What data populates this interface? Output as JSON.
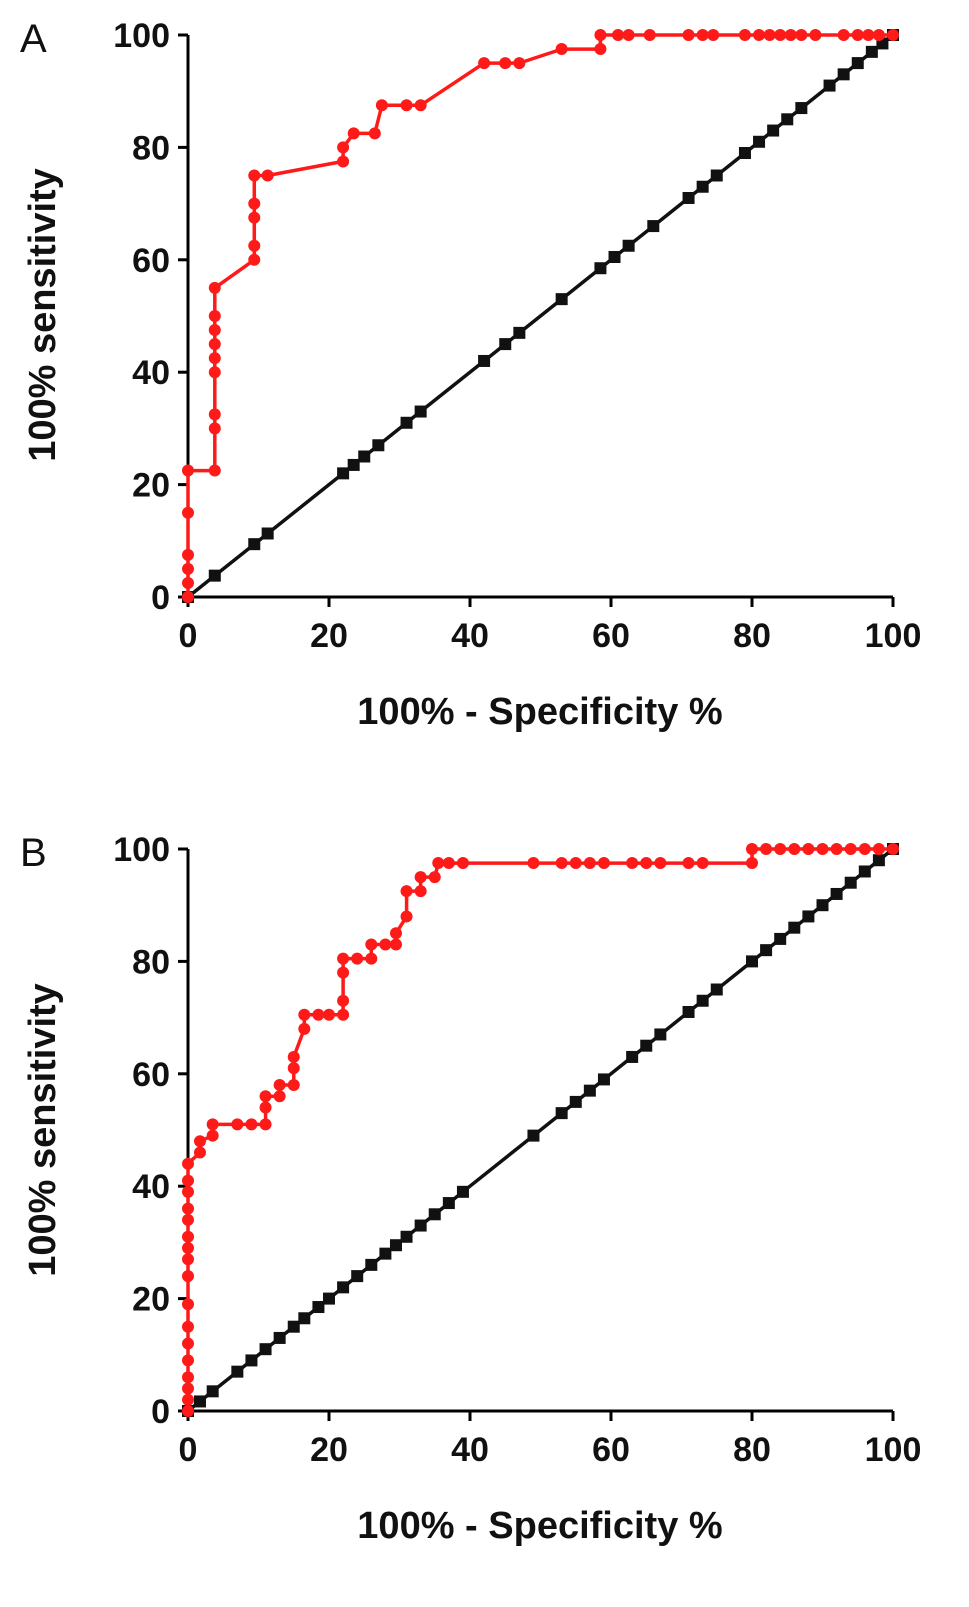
{
  "chart_data": [
    {
      "type": "line",
      "panel_label": "A",
      "xlabel": "100% - Specificity %",
      "ylabel": "100% sensitivity",
      "xlim": [
        0,
        100
      ],
      "ylim": [
        0,
        100
      ],
      "xticks": [
        "0",
        "20",
        "40",
        "60",
        "80",
        "100"
      ],
      "yticks": [
        "0",
        "20",
        "40",
        "60",
        "80",
        "100"
      ],
      "series": [
        {
          "color": "#ff1a1a",
          "marker": "circle",
          "points": [
            [
              0,
              0
            ],
            [
              0,
              2.5
            ],
            [
              0,
              5
            ],
            [
              0,
              7.5
            ],
            [
              0,
              15
            ],
            [
              0,
              22.5
            ],
            [
              3.8,
              22.5
            ],
            [
              3.8,
              30
            ],
            [
              3.8,
              32.5
            ],
            [
              3.8,
              40
            ],
            [
              3.8,
              42.5
            ],
            [
              3.8,
              45
            ],
            [
              3.8,
              47.5
            ],
            [
              3.8,
              50
            ],
            [
              3.8,
              55
            ],
            [
              9.4,
              60
            ],
            [
              9.4,
              62.5
            ],
            [
              9.4,
              67.5
            ],
            [
              9.4,
              70
            ],
            [
              9.4,
              75
            ],
            [
              11.3,
              75
            ],
            [
              22,
              77.5
            ],
            [
              22,
              80
            ],
            [
              23.5,
              82.5
            ],
            [
              26.5,
              82.5
            ],
            [
              27.5,
              87.5
            ],
            [
              31,
              87.5
            ],
            [
              33,
              87.5
            ],
            [
              42,
              95
            ],
            [
              45,
              95
            ],
            [
              47,
              95
            ],
            [
              53,
              97.5
            ],
            [
              58.5,
              97.5
            ],
            [
              58.5,
              100
            ],
            [
              61,
              100
            ],
            [
              62.5,
              100
            ],
            [
              65.5,
              100
            ],
            [
              71,
              100
            ],
            [
              73,
              100
            ],
            [
              74.5,
              100
            ],
            [
              79,
              100
            ],
            [
              81,
              100
            ],
            [
              82.5,
              100
            ],
            [
              84,
              100
            ],
            [
              85.5,
              100
            ],
            [
              87,
              100
            ],
            [
              89,
              100
            ],
            [
              93,
              100
            ],
            [
              95,
              100
            ],
            [
              96.5,
              100
            ],
            [
              98,
              100
            ],
            [
              100,
              100
            ]
          ]
        },
        {
          "color": "#111111",
          "marker": "square",
          "points": [
            [
              0,
              0
            ],
            [
              3.8,
              3.8
            ],
            [
              9.4,
              9.4
            ],
            [
              11.3,
              11.3
            ],
            [
              22,
              22
            ],
            [
              23.5,
              23.5
            ],
            [
              25,
              25
            ],
            [
              27,
              27
            ],
            [
              31,
              31
            ],
            [
              33,
              33
            ],
            [
              42,
              42
            ],
            [
              45,
              45
            ],
            [
              47,
              47
            ],
            [
              53,
              53
            ],
            [
              58.5,
              58.5
            ],
            [
              60.5,
              60.5
            ],
            [
              62.5,
              62.5
            ],
            [
              66,
              66
            ],
            [
              71,
              71
            ],
            [
              73,
              73
            ],
            [
              75,
              75
            ],
            [
              79,
              79
            ],
            [
              81,
              81
            ],
            [
              83,
              83
            ],
            [
              85,
              85
            ],
            [
              87,
              87
            ],
            [
              91,
              91
            ],
            [
              93,
              93
            ],
            [
              95,
              95
            ],
            [
              97,
              97
            ],
            [
              98.5,
              98.5
            ],
            [
              100,
              100
            ]
          ]
        }
      ]
    },
    {
      "type": "line",
      "panel_label": "B",
      "xlabel": "100% - Specificity %",
      "ylabel": "100% sensitivity",
      "xlim": [
        0,
        100
      ],
      "ylim": [
        0,
        100
      ],
      "xticks": [
        "0",
        "20",
        "40",
        "60",
        "80",
        "100"
      ],
      "yticks": [
        "0",
        "20",
        "40",
        "60",
        "80",
        "100"
      ],
      "series": [
        {
          "color": "#ff1a1a",
          "marker": "circle",
          "points": [
            [
              0,
              0
            ],
            [
              0,
              2
            ],
            [
              0,
              4
            ],
            [
              0,
              6
            ],
            [
              0,
              9
            ],
            [
              0,
              12
            ],
            [
              0,
              15
            ],
            [
              0,
              19
            ],
            [
              0,
              24
            ],
            [
              0,
              27
            ],
            [
              0,
              29
            ],
            [
              0,
              31
            ],
            [
              0,
              34
            ],
            [
              0,
              36
            ],
            [
              0,
              39
            ],
            [
              0,
              41
            ],
            [
              0,
              44
            ],
            [
              1.7,
              46
            ],
            [
              1.7,
              48
            ],
            [
              3.5,
              49
            ],
            [
              3.5,
              51
            ],
            [
              7,
              51
            ],
            [
              9,
              51
            ],
            [
              11,
              51
            ],
            [
              11,
              54
            ],
            [
              11,
              56
            ],
            [
              13,
              56
            ],
            [
              13,
              58
            ],
            [
              15,
              58
            ],
            [
              15,
              61
            ],
            [
              15,
              63
            ],
            [
              16.5,
              68
            ],
            [
              16.5,
              70.5
            ],
            [
              18.5,
              70.5
            ],
            [
              20,
              70.5
            ],
            [
              22,
              70.5
            ],
            [
              22,
              73
            ],
            [
              22,
              78
            ],
            [
              22,
              80.5
            ],
            [
              24,
              80.5
            ],
            [
              26,
              80.5
            ],
            [
              26,
              83
            ],
            [
              28,
              83
            ],
            [
              29.5,
              83
            ],
            [
              29.5,
              85
            ],
            [
              31,
              88
            ],
            [
              31,
              92.5
            ],
            [
              33,
              92.5
            ],
            [
              33,
              95
            ],
            [
              35,
              95
            ],
            [
              35.5,
              97.5
            ],
            [
              37,
              97.5
            ],
            [
              39,
              97.5
            ],
            [
              49,
              97.5
            ],
            [
              53,
              97.5
            ],
            [
              55,
              97.5
            ],
            [
              57,
              97.5
            ],
            [
              59,
              97.5
            ],
            [
              63,
              97.5
            ],
            [
              65,
              97.5
            ],
            [
              67,
              97.5
            ],
            [
              71,
              97.5
            ],
            [
              73,
              97.5
            ],
            [
              80,
              97.5
            ],
            [
              80,
              100
            ],
            [
              82,
              100
            ],
            [
              84,
              100
            ],
            [
              86,
              100
            ],
            [
              88,
              100
            ],
            [
              90,
              100
            ],
            [
              92,
              100
            ],
            [
              94,
              100
            ],
            [
              96,
              100
            ],
            [
              98,
              100
            ],
            [
              100,
              100
            ]
          ]
        },
        {
          "color": "#111111",
          "marker": "square",
          "points": [
            [
              0,
              0
            ],
            [
              1.7,
              1.7
            ],
            [
              3.5,
              3.5
            ],
            [
              7,
              7
            ],
            [
              9,
              9
            ],
            [
              11,
              11
            ],
            [
              13,
              13
            ],
            [
              15,
              15
            ],
            [
              16.5,
              16.5
            ],
            [
              18.5,
              18.5
            ],
            [
              20,
              20
            ],
            [
              22,
              22
            ],
            [
              24,
              24
            ],
            [
              26,
              26
            ],
            [
              28,
              28
            ],
            [
              29.5,
              29.5
            ],
            [
              31,
              31
            ],
            [
              33,
              33
            ],
            [
              35,
              35
            ],
            [
              37,
              37
            ],
            [
              39,
              39
            ],
            [
              49,
              49
            ],
            [
              53,
              53
            ],
            [
              55,
              55
            ],
            [
              57,
              57
            ],
            [
              59,
              59
            ],
            [
              63,
              63
            ],
            [
              65,
              65
            ],
            [
              67,
              67
            ],
            [
              71,
              71
            ],
            [
              73,
              73
            ],
            [
              75,
              75
            ],
            [
              80,
              80
            ],
            [
              82,
              82
            ],
            [
              84,
              84
            ],
            [
              86,
              86
            ],
            [
              88,
              88
            ],
            [
              90,
              90
            ],
            [
              92,
              92
            ],
            [
              94,
              94
            ],
            [
              96,
              96
            ],
            [
              98,
              98
            ],
            [
              100,
              100
            ]
          ]
        }
      ]
    }
  ]
}
